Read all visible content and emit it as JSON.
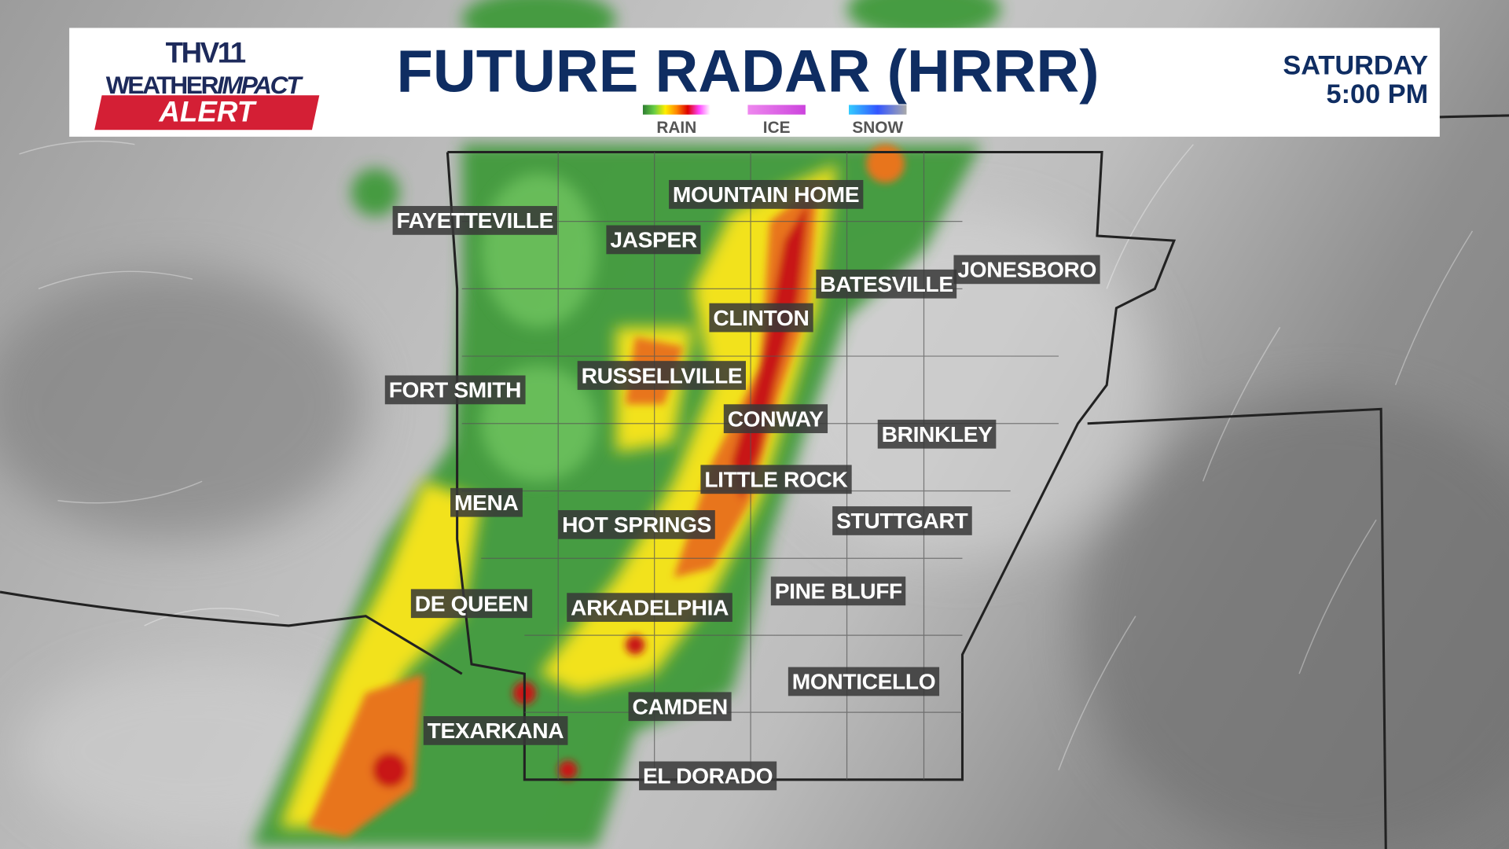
{
  "header": {
    "logo": {
      "station": "THV11",
      "line1_a": "WEATHER",
      "line1_b": "IMPACT",
      "alert": "ALERT"
    },
    "title": "FUTURE RADAR (HRRR)",
    "legend": [
      {
        "label": "RAIN",
        "gradient": [
          "#2e7d32",
          "#66cc44",
          "#ffee00",
          "#ff8800",
          "#dd0000",
          "#ff44ff"
        ]
      },
      {
        "label": "ICE",
        "gradient": [
          "#ee88ee",
          "#cc44dd"
        ]
      },
      {
        "label": "SNOW",
        "gradient": [
          "#33ccff",
          "#3355ff",
          "#aaaaaa"
        ]
      }
    ],
    "day": "SATURDAY",
    "time": "5:00 PM"
  },
  "cities": [
    {
      "name": "FAYETTEVILLE"
    },
    {
      "name": "JASPER"
    },
    {
      "name": "MOUNTAIN HOME"
    },
    {
      "name": "BATESVILLE"
    },
    {
      "name": "JONESBORO"
    },
    {
      "name": "CLINTON"
    },
    {
      "name": "RUSSELLVILLE"
    },
    {
      "name": "FORT SMITH"
    },
    {
      "name": "CONWAY"
    },
    {
      "name": "BRINKLEY"
    },
    {
      "name": "LITTLE ROCK"
    },
    {
      "name": "MENA"
    },
    {
      "name": "HOT SPRINGS"
    },
    {
      "name": "STUTTGART"
    },
    {
      "name": "DE QUEEN"
    },
    {
      "name": "ARKADELPHIA"
    },
    {
      "name": "PINE BLUFF"
    },
    {
      "name": "MONTICELLO"
    },
    {
      "name": "CAMDEN"
    },
    {
      "name": "TEXARKANA"
    },
    {
      "name": "EL DORADO"
    }
  ]
}
